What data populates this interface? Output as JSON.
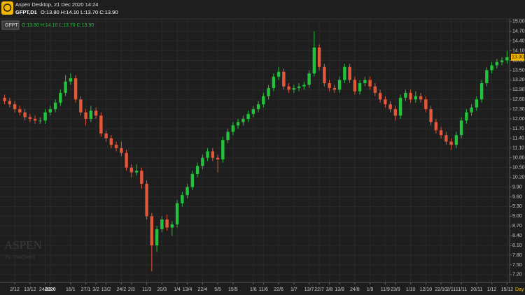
{
  "header": {
    "app": "Aspen Desktop, 21 Dec 2020 14:24",
    "symbol": "GFPT,D1",
    "ohlc": "O:13.80 H:14.10 L:13.70 C:13.90"
  },
  "legend": {
    "symbol": "GFPT",
    "ohlc": "O:13.80 H:14.10 L:13.70 C:13.90"
  },
  "watermark": {
    "brand": "ASPEN",
    "by": "by ThaiQuest"
  },
  "timeframe": "Day",
  "chart_data": {
    "type": "candlestick",
    "categories": [
      null,
      null,
      "2/12",
      null,
      null,
      "13/12",
      null,
      null,
      "24/12",
      "2020",
      null,
      null,
      null,
      "16/1",
      null,
      null,
      "27/1",
      null,
      "3/2",
      null,
      "13/2",
      null,
      null,
      "24/2",
      null,
      "2/3",
      null,
      null,
      "11/3",
      null,
      null,
      "20/3",
      null,
      null,
      "1/4",
      null,
      "13/4",
      null,
      null,
      "22/4",
      null,
      null,
      "5/5",
      null,
      null,
      "15/5",
      null,
      null,
      null,
      "1/6",
      null,
      "11/6",
      null,
      null,
      "22/6",
      null,
      null,
      "1/7",
      null,
      null,
      "13/7",
      null,
      "22/7",
      null,
      "3/8",
      null,
      "13/8",
      null,
      null,
      "24/8",
      null,
      null,
      "1/9",
      null,
      null,
      "11/9",
      null,
      "23/9",
      null,
      null,
      "1/10",
      null,
      null,
      "12/10",
      null,
      null,
      "22/10",
      null,
      "2/11",
      null,
      "11/11",
      null,
      null,
      "20/11",
      null,
      null,
      "1/12",
      null,
      null,
      "15/12"
    ],
    "open": [
      12.65,
      12.55,
      12.45,
      12.3,
      12.2,
      12.05,
      12.0,
      11.95,
      11.95,
      12.2,
      12.3,
      12.5,
      12.8,
      13.15,
      13.25,
      12.6,
      12.2,
      12.0,
      12.25,
      12.1,
      11.55,
      11.4,
      11.2,
      11.1,
      10.95,
      10.5,
      10.35,
      10.4,
      10.0,
      9.0,
      8.1,
      8.6,
      8.9,
      8.65,
      8.75,
      9.4,
      9.65,
      9.9,
      10.3,
      10.55,
      10.8,
      11.0,
      10.8,
      10.75,
      11.35,
      11.6,
      11.8,
      11.9,
      12.0,
      12.15,
      12.3,
      12.45,
      12.7,
      12.95,
      13.3,
      13.45,
      13.0,
      12.9,
      12.95,
      13.0,
      13.05,
      13.4,
      14.2,
      13.6,
      13.1,
      12.95,
      12.9,
      13.2,
      13.6,
      13.2,
      12.85,
      13.1,
      13.2,
      13.0,
      12.8,
      12.6,
      12.45,
      12.3,
      12.1,
      12.65,
      12.8,
      12.6,
      12.7,
      12.6,
      12.3,
      11.9,
      11.65,
      11.5,
      11.3,
      11.2,
      11.5,
      11.95,
      12.2,
      12.35,
      12.6,
      13.1,
      13.5,
      13.65,
      13.75,
      13.8
    ],
    "high": [
      12.75,
      12.65,
      12.55,
      12.4,
      12.3,
      12.15,
      12.1,
      12.05,
      12.3,
      12.4,
      12.6,
      12.9,
      13.35,
      13.4,
      13.35,
      12.7,
      12.3,
      12.4,
      12.35,
      12.2,
      11.65,
      11.5,
      11.3,
      11.3,
      11.05,
      10.6,
      10.6,
      10.5,
      10.1,
      9.1,
      8.7,
      9.0,
      9.05,
      8.85,
      9.5,
      9.75,
      10.0,
      10.4,
      10.65,
      10.9,
      11.1,
      11.1,
      10.9,
      11.45,
      11.7,
      11.9,
      12.0,
      12.1,
      12.25,
      12.4,
      12.55,
      12.8,
      13.05,
      13.4,
      13.6,
      13.55,
      13.1,
      13.05,
      13.1,
      13.15,
      13.5,
      14.7,
      14.3,
      13.7,
      13.2,
      13.05,
      13.3,
      13.7,
      13.7,
      13.3,
      13.2,
      13.3,
      13.3,
      13.1,
      12.9,
      12.7,
      12.55,
      12.4,
      12.75,
      12.9,
      12.9,
      12.85,
      12.8,
      12.7,
      12.4,
      12.0,
      11.75,
      11.6,
      11.4,
      11.6,
      12.05,
      12.3,
      12.45,
      12.7,
      13.2,
      13.6,
      13.75,
      13.85,
      13.9,
      14.1
    ],
    "low": [
      12.45,
      12.35,
      12.2,
      12.1,
      11.95,
      11.9,
      11.85,
      11.85,
      11.85,
      12.1,
      12.2,
      12.4,
      12.7,
      13.05,
      12.5,
      12.1,
      11.8,
      11.9,
      12.0,
      11.45,
      11.3,
      11.1,
      11.0,
      10.85,
      10.4,
      10.2,
      10.25,
      9.85,
      8.9,
      7.3,
      7.9,
      8.5,
      8.55,
      8.4,
      8.65,
      9.3,
      9.55,
      9.8,
      10.2,
      10.45,
      10.7,
      10.7,
      10.35,
      10.65,
      11.25,
      11.5,
      11.7,
      11.8,
      11.9,
      12.05,
      12.2,
      12.35,
      12.6,
      12.85,
      13.2,
      12.9,
      12.8,
      12.8,
      12.85,
      12.9,
      12.95,
      13.3,
      13.5,
      13.0,
      12.85,
      12.8,
      12.8,
      13.1,
      13.1,
      12.75,
      12.75,
      13.0,
      12.9,
      12.7,
      12.5,
      12.35,
      12.2,
      11.95,
      12.0,
      12.55,
      12.5,
      12.5,
      12.5,
      12.2,
      11.8,
      11.55,
      11.4,
      11.2,
      11.05,
      11.1,
      11.4,
      11.85,
      12.1,
      12.25,
      12.5,
      13.0,
      13.4,
      13.55,
      13.65,
      13.7
    ],
    "close": [
      12.55,
      12.45,
      12.3,
      12.2,
      12.05,
      12.0,
      11.95,
      11.95,
      12.2,
      12.3,
      12.5,
      12.8,
      13.15,
      13.25,
      12.6,
      12.2,
      12.0,
      12.25,
      12.1,
      11.55,
      11.4,
      11.2,
      11.1,
      10.95,
      10.5,
      10.35,
      10.4,
      10.0,
      9.0,
      8.1,
      8.6,
      8.9,
      8.65,
      8.75,
      9.4,
      9.65,
      9.9,
      10.3,
      10.55,
      10.8,
      11.0,
      10.8,
      10.75,
      11.35,
      11.6,
      11.8,
      11.9,
      12.0,
      12.15,
      12.3,
      12.45,
      12.7,
      12.95,
      13.3,
      13.45,
      13.0,
      12.9,
      12.95,
      13.0,
      13.05,
      13.4,
      14.2,
      13.6,
      13.1,
      12.95,
      12.9,
      13.2,
      13.6,
      13.2,
      12.85,
      13.1,
      13.2,
      13.0,
      12.8,
      12.6,
      12.45,
      12.3,
      12.1,
      12.65,
      12.8,
      12.6,
      12.7,
      12.6,
      12.3,
      11.9,
      11.65,
      11.5,
      11.3,
      11.2,
      11.5,
      11.95,
      12.2,
      12.35,
      12.6,
      13.1,
      13.5,
      13.65,
      13.75,
      13.8,
      13.9
    ],
    "up_color": "#22c23c",
    "down_color": "#e3583b",
    "ylim": [
      6.96,
      15.06
    ],
    "yticks": [
      {
        "value": 7.2,
        "label": "7.20"
      },
      {
        "value": 7.5,
        "label": "7.50"
      },
      {
        "value": 7.8,
        "label": "7.80"
      },
      {
        "value": 8.1,
        "label": "8.10"
      },
      {
        "value": 8.4,
        "label": "8.40"
      },
      {
        "value": 8.7,
        "label": "8.70"
      },
      {
        "value": 9.0,
        "label": "9.00"
      },
      {
        "value": 9.3,
        "label": "9.30"
      },
      {
        "value": 9.6,
        "label": "9.60"
      },
      {
        "value": 9.9,
        "label": "9.90"
      },
      {
        "value": 10.2,
        "label": "10.20"
      },
      {
        "value": 10.5,
        "label": "10.50"
      },
      {
        "value": 10.8,
        "label": "10.80"
      },
      {
        "value": 11.1,
        "label": "11.10"
      },
      {
        "value": 11.4,
        "label": "11.40"
      },
      {
        "value": 11.7,
        "label": "11.70"
      },
      {
        "value": 12.0,
        "label": "12.00"
      },
      {
        "value": 12.3,
        "label": "12.30"
      },
      {
        "value": 12.6,
        "label": "12.60"
      },
      {
        "value": 12.9,
        "label": "12.90"
      },
      {
        "value": 13.2,
        "label": "13.20"
      },
      {
        "value": 13.5,
        "label": "13.50"
      },
      {
        "value": 13.8,
        "label": "13.80"
      },
      {
        "value": 14.1,
        "label": "14.10"
      },
      {
        "value": 14.4,
        "label": "14.40"
      },
      {
        "value": 14.7,
        "label": "14.70"
      },
      {
        "value": 15.0,
        "label": "15.00"
      }
    ],
    "price_tag": {
      "value": 13.9,
      "label": "13.90"
    },
    "grid": true
  }
}
